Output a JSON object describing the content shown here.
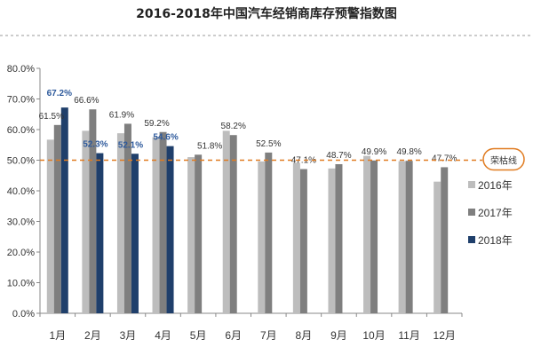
{
  "chart_data": {
    "type": "bar",
    "title": "2016-2018年中国汽车经销商库存预警指数图",
    "categories": [
      "1月",
      "2月",
      "3月",
      "4月",
      "5月",
      "6月",
      "7月",
      "8月",
      "9月",
      "10月",
      "11月",
      "12月"
    ],
    "ylim": [
      0,
      80
    ],
    "yticks": [
      "0.0%",
      "10.0%",
      "20.0%",
      "30.0%",
      "40.0%",
      "50.0%",
      "60.0%",
      "70.0%",
      "80.0%"
    ],
    "grid": "none",
    "legend_position": "right",
    "series": [
      {
        "name": "2016年",
        "color": "#bdbdbd",
        "values": [
          56.7,
          59.6,
          58.8,
          57.5,
          51.0,
          59.6,
          49.6,
          49.2,
          47.3,
          51.4,
          49.7,
          43.0
        ]
      },
      {
        "name": "2017年",
        "color": "#7f7f7f",
        "values": [
          61.5,
          66.6,
          61.9,
          59.2,
          51.8,
          58.2,
          52.5,
          47.1,
          48.7,
          49.9,
          49.8,
          47.7
        ]
      },
      {
        "name": "2018年",
        "color": "#1f3f6b",
        "values": [
          67.2,
          52.3,
          52.1,
          54.6,
          null,
          null,
          null,
          null,
          null,
          null,
          null,
          null
        ]
      }
    ],
    "labels_2017": [
      "61.5%",
      "66.6%",
      "61.9%",
      "59.2%",
      "51.8%",
      "58.2%",
      "52.5%",
      "47.1%",
      "48.7%",
      "49.9%",
      "49.8%",
      "47.7%"
    ],
    "labels_2018": [
      "67.2%",
      "52.3%",
      "52.1%",
      "54.6%"
    ],
    "reference_line": {
      "value": 50,
      "label": "荣枯线",
      "color": "#e07b20"
    }
  }
}
